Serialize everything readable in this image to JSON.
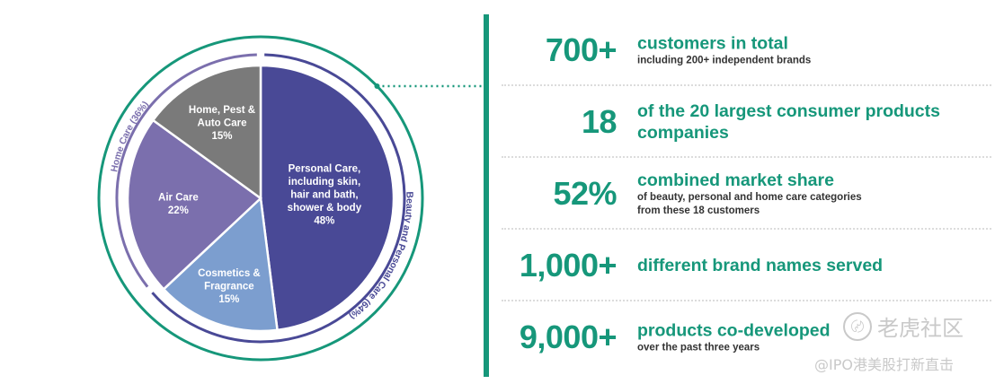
{
  "chart_data": {
    "type": "pie",
    "slices": [
      {
        "label_lines": [
          "Personal Care,",
          "including skin,",
          "hair and bath,",
          "shower & body",
          "48%"
        ],
        "value": 48,
        "color": "#494996"
      },
      {
        "label_lines": [
          "Cosmetics &",
          "Fragrance",
          "15%"
        ],
        "value": 15,
        "color": "#7c9ecf"
      },
      {
        "label_lines": [
          "Air Care",
          "22%"
        ],
        "value": 22,
        "color": "#7b6fad"
      },
      {
        "label_lines": [
          "Home, Pest &",
          "Auto Care",
          "15%"
        ],
        "value": 15,
        "color": "#7a7a7a"
      }
    ],
    "groups": [
      {
        "label": "Beauty and Personal Care (64%)",
        "value": 64,
        "color": "#494996"
      },
      {
        "label": "Home Care (36%)",
        "value": 36,
        "color": "#7b6fad"
      }
    ],
    "outer_ring_color": "#16977a"
  },
  "stats": [
    {
      "value": "700+",
      "headline": [
        "customers in total"
      ],
      "sub": [
        "including 200+ independent brands"
      ]
    },
    {
      "value": "18",
      "headline": [
        "of the 20 largest consumer products",
        "companies"
      ],
      "sub": []
    },
    {
      "value": "52%",
      "headline": [
        "combined market share"
      ],
      "sub": [
        "of beauty, personal and home care categories",
        "from these 18 customers"
      ]
    },
    {
      "value": "1,000+",
      "headline": [
        "different brand names served"
      ],
      "sub": []
    },
    {
      "value": "9,000+",
      "headline": [
        "products co-developed"
      ],
      "sub": [
        "over the past three years"
      ]
    }
  ],
  "watermark": {
    "logo_glyph": "〄",
    "line1": "老虎社区",
    "line2": "@IPO港美股打新直击"
  },
  "colors": {
    "accent": "#16977a"
  }
}
